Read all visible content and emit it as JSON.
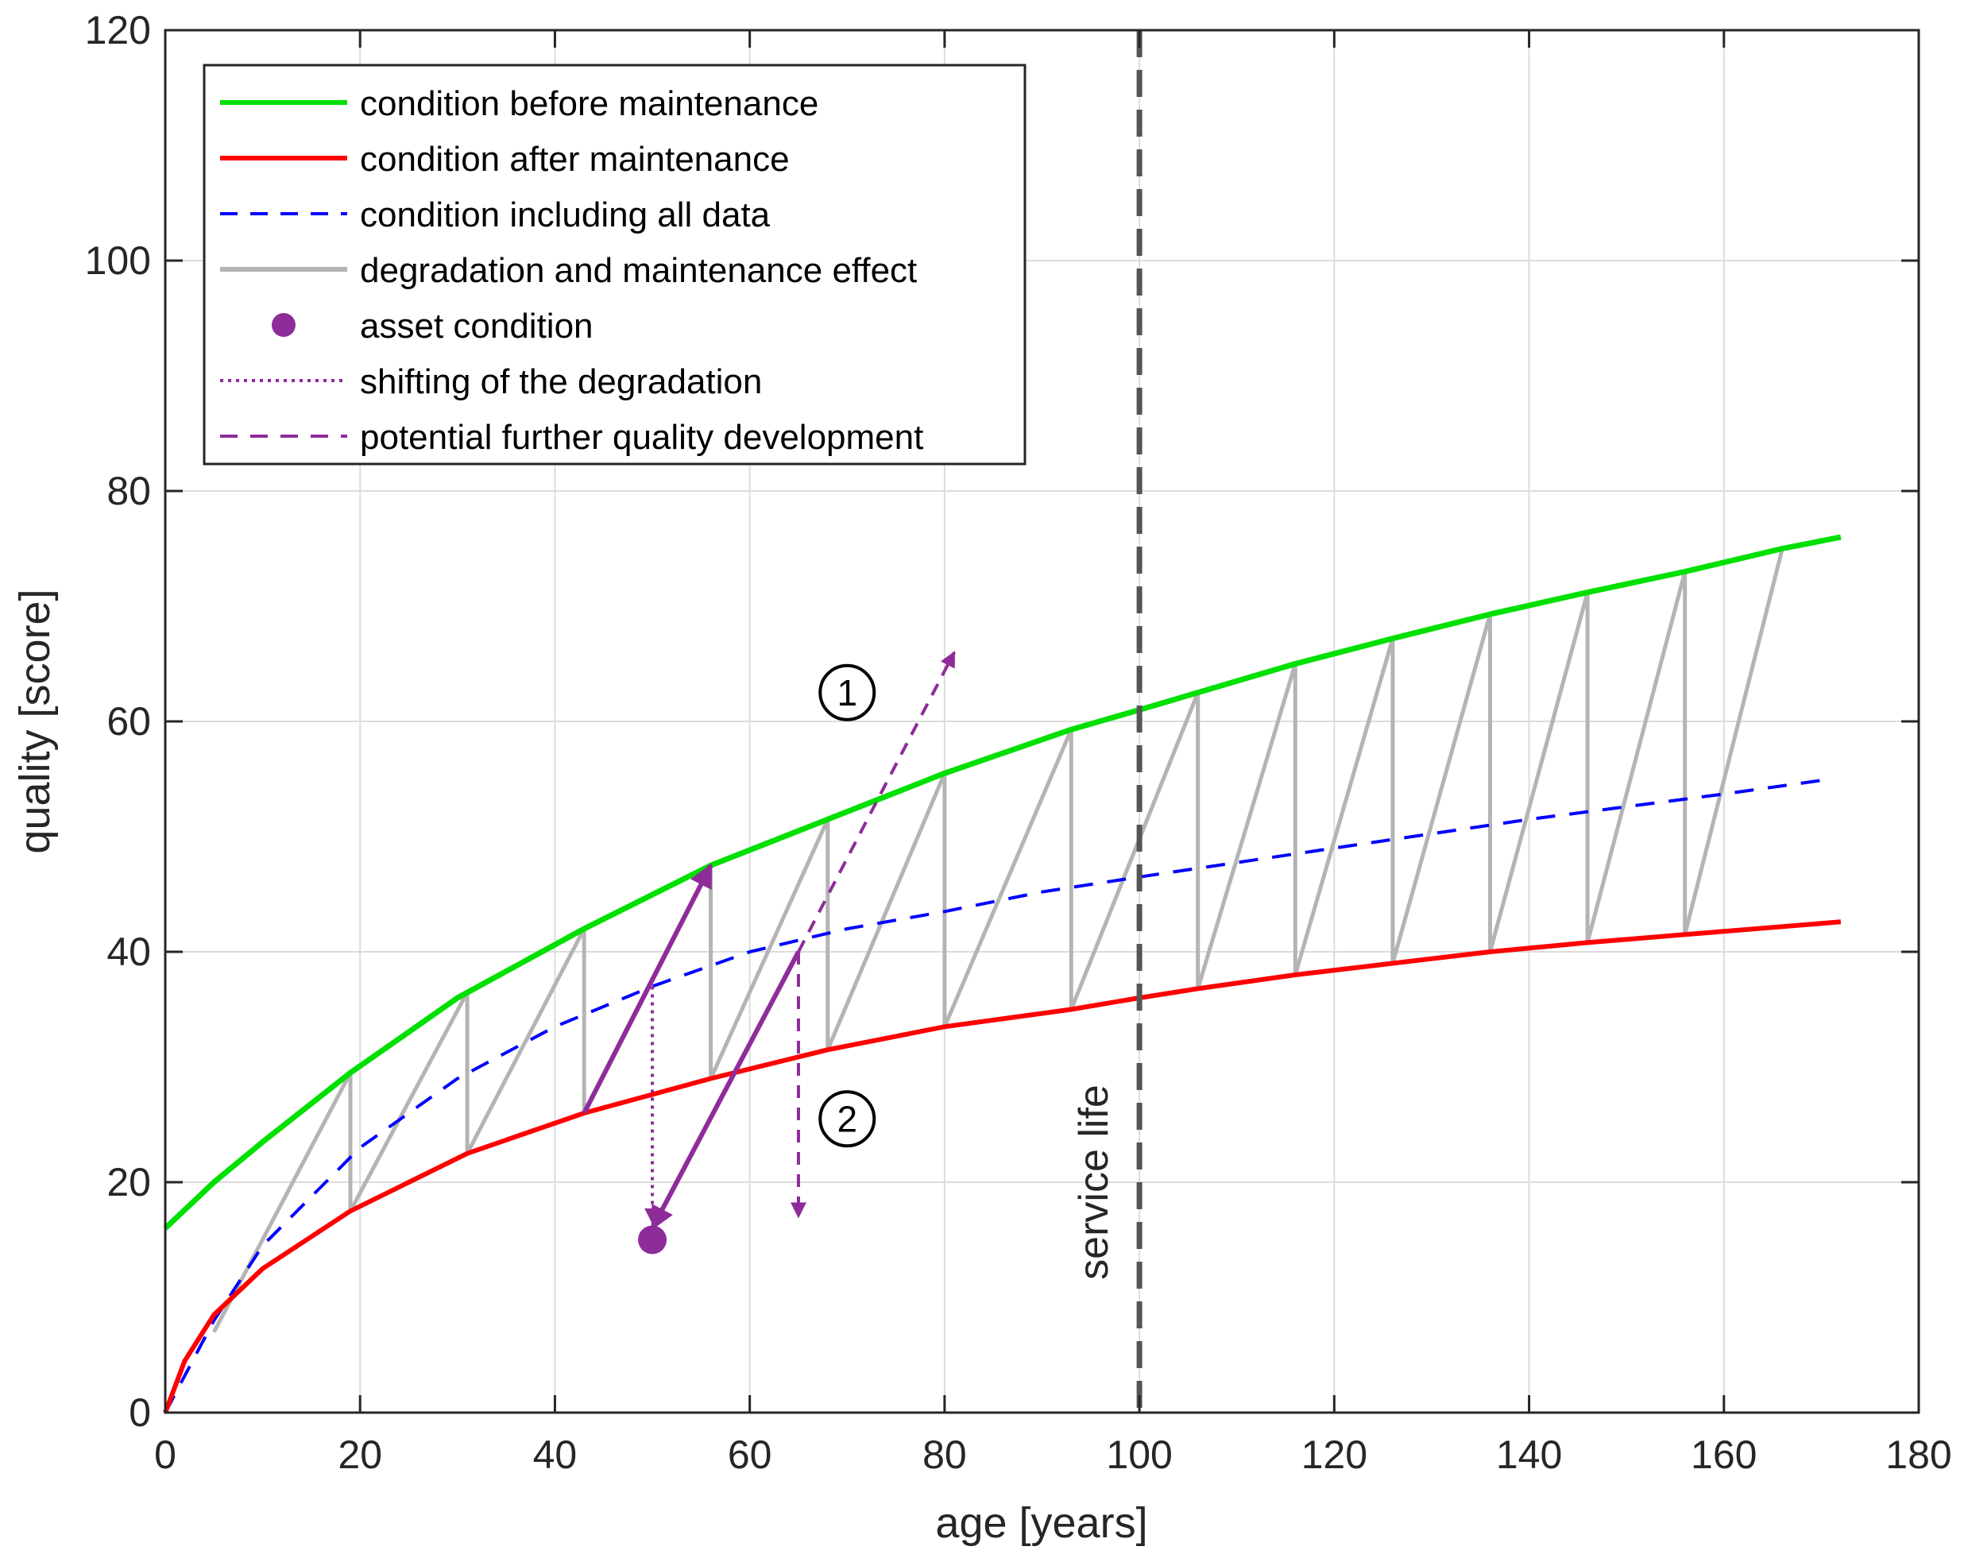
{
  "chart_data": {
    "type": "line",
    "title": "",
    "xlabel": "age [years]",
    "ylabel": "quality [score]",
    "xlim": [
      0,
      180
    ],
    "ylim": [
      0,
      120
    ],
    "xticks": [
      0,
      20,
      40,
      60,
      80,
      100,
      120,
      140,
      160,
      180
    ],
    "yticks": [
      0,
      20,
      40,
      60,
      80,
      100,
      120
    ],
    "grid": true,
    "legend_position": "top-left",
    "colors": {
      "before": "#00e000",
      "after": "#ff0000",
      "all_data": "#0000ff",
      "degradation": "#b4b4b4",
      "asset": "#8e2c9a",
      "service_life": "#555555",
      "axis": "#262626",
      "grid": "#dcdcdc"
    },
    "legend": [
      {
        "label": "condition before maintenance",
        "style": "solid",
        "color": "#00e000",
        "marker": "line"
      },
      {
        "label": "condition after maintenance",
        "style": "solid",
        "color": "#ff0000",
        "marker": "line"
      },
      {
        "label": "condition including all data",
        "style": "dashed",
        "color": "#0000ff",
        "marker": "line"
      },
      {
        "label": "degradation and maintenance effect",
        "style": "solid",
        "color": "#b4b4b4",
        "marker": "line"
      },
      {
        "label": "asset condition",
        "style": "none",
        "color": "#8e2c9a",
        "marker": "dot"
      },
      {
        "label": "shifting of the degradation",
        "style": "dotted",
        "color": "#8e2c9a",
        "marker": "line"
      },
      {
        "label": "potential further quality development",
        "style": "dashed",
        "color": "#8e2c9a",
        "marker": "line"
      }
    ],
    "series": [
      {
        "name": "condition before maintenance",
        "x": [
          0,
          5,
          10,
          19,
          30,
          43,
          56,
          68,
          80,
          93,
          100,
          106,
          116,
          126,
          136,
          146,
          156,
          166,
          172
        ],
        "y": [
          16,
          20,
          23.5,
          29.5,
          36,
          42,
          47.5,
          51.5,
          55.5,
          59.3,
          61,
          62.5,
          65,
          67.2,
          69.3,
          71.2,
          73,
          75,
          76
        ]
      },
      {
        "name": "condition after maintenance",
        "x": [
          0,
          2,
          5,
          10,
          19,
          31,
          43,
          56,
          68,
          80,
          93,
          100,
          106,
          116,
          126,
          136,
          146,
          156,
          172
        ],
        "y": [
          0,
          4.5,
          8.5,
          12.5,
          17.5,
          22.5,
          26,
          29,
          31.5,
          33.5,
          35,
          36,
          36.8,
          38,
          39,
          40,
          40.8,
          41.5,
          42.6
        ]
      },
      {
        "name": "condition including all data",
        "x": [
          0,
          5,
          10,
          20,
          30,
          40,
          50,
          60,
          70,
          80,
          90,
          100,
          120,
          140,
          160,
          171
        ],
        "y": [
          0,
          8,
          14.5,
          23,
          29,
          33.5,
          37,
          40,
          42,
          43.5,
          45.2,
          46.5,
          49,
          51.5,
          53.7,
          55
        ]
      },
      {
        "name": "degradation and maintenance effect",
        "x": [
          5,
          19,
          19,
          31,
          31,
          43,
          43,
          56,
          56,
          68,
          68,
          80,
          80,
          93,
          93,
          106,
          106,
          116,
          116,
          126,
          126,
          136,
          136,
          146,
          146,
          156,
          156,
          166
        ],
        "y": [
          7,
          29.5,
          17.5,
          36.5,
          22.5,
          42,
          26,
          47.5,
          29,
          51.5,
          31.5,
          55.5,
          33.5,
          59.3,
          35,
          62.5,
          36.8,
          65,
          38,
          67.2,
          39,
          69.3,
          40,
          71.2,
          40.8,
          73,
          41.5,
          75
        ]
      }
    ],
    "asset_condition": {
      "x": 50,
      "y": 15
    },
    "shifting_of_the_degradation": {
      "x": [
        50,
        50
      ],
      "y": [
        37,
        16.5
      ]
    },
    "asset_arrows": [
      {
        "x": [
          43,
          56
        ],
        "y": [
          26,
          47.5
        ]
      },
      {
        "x": [
          65,
          50
        ],
        "y": [
          40,
          16
        ]
      }
    ],
    "potential_development": [
      {
        "id": "1",
        "x": [
          65,
          81
        ],
        "y": [
          40,
          66
        ]
      },
      {
        "id": "2",
        "x": [
          65,
          65
        ],
        "y": [
          40,
          17
        ]
      }
    ],
    "annotations": [
      {
        "text": "service life",
        "x": 100,
        "orientation": "vertical"
      },
      {
        "text": "1",
        "x": 70,
        "y": 62.5,
        "shape": "circled"
      },
      {
        "text": "2",
        "x": 70,
        "y": 25.5,
        "shape": "circled"
      }
    ]
  }
}
